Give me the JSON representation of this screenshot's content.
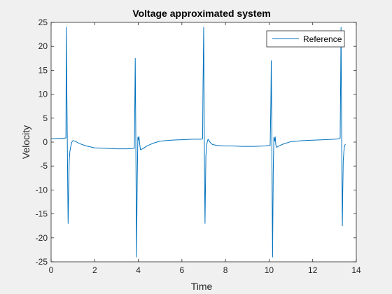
{
  "chart_data": {
    "type": "line",
    "title": "Voltage approximated system",
    "xlabel": "Time",
    "ylabel": "Velocity",
    "xlim": [
      0,
      14
    ],
    "ylim": [
      -25,
      25
    ],
    "xticks": [
      0,
      2,
      4,
      6,
      8,
      10,
      12,
      14
    ],
    "yticks": [
      -25,
      -20,
      -15,
      -10,
      -5,
      0,
      5,
      10,
      15,
      20,
      25
    ],
    "grid": false,
    "legend_position": "top-right",
    "series": [
      {
        "name": "Reference",
        "color": "#0072BD",
        "x": [
          0,
          0.6,
          0.68,
          0.7,
          0.72,
          0.74,
          0.76,
          0.78,
          0.8,
          0.83,
          0.86,
          0.9,
          0.95,
          1.0,
          1.1,
          1.3,
          1.6,
          2.0,
          2.5,
          3.0,
          3.5,
          3.82,
          3.84,
          3.86,
          3.88,
          3.9,
          3.92,
          3.95,
          3.98,
          4.0,
          4.03,
          4.06,
          4.1,
          4.2,
          4.4,
          4.7,
          5.0,
          5.5,
          6.0,
          6.5,
          6.9,
          6.95,
          6.97,
          7.0,
          7.02,
          7.04,
          7.06,
          7.08,
          7.1,
          7.13,
          7.16,
          7.2,
          7.25,
          7.3,
          7.4,
          7.6,
          7.9,
          8.3,
          8.8,
          9.3,
          9.8,
          10.05,
          10.08,
          10.1,
          10.12,
          10.14,
          10.16,
          10.19,
          10.22,
          10.25,
          10.28,
          10.31,
          10.35,
          10.45,
          10.65,
          11.0,
          11.5,
          12.0,
          12.5,
          13.0,
          13.2,
          13.26,
          13.28,
          13.3,
          13.32,
          13.34,
          13.36,
          13.38,
          13.4,
          13.43,
          13.46,
          13.5
        ],
        "y": [
          0.7,
          0.8,
          0.9,
          24,
          12,
          2,
          -8,
          -17,
          -12,
          -4,
          -2,
          -1,
          0,
          0.3,
          0.2,
          -0.3,
          -0.8,
          -1.2,
          -1.3,
          -1.4,
          -1.4,
          -1.3,
          8,
          17.5,
          5,
          -10,
          -24,
          -8,
          1,
          0.4,
          1.2,
          -0.3,
          -1.6,
          -1.4,
          -0.8,
          -0.2,
          0.2,
          0.4,
          0.5,
          0.6,
          0.6,
          0.7,
          12,
          24,
          6,
          -8,
          -17,
          -10,
          -3,
          -1,
          0,
          0.6,
          0.3,
          -0.1,
          -0.5,
          -0.7,
          -0.8,
          -0.8,
          -0.9,
          -0.9,
          -0.8,
          -0.7,
          8,
          17,
          5,
          -12,
          -24,
          -6,
          1,
          0.2,
          1.1,
          -0.6,
          -1.1,
          -0.8,
          -0.4,
          0.1,
          0.3,
          0.4,
          0.5,
          0.6,
          0.7,
          0.8,
          12,
          24,
          8,
          -6,
          -17.5,
          -10,
          -4,
          -2,
          -0.8,
          -0.4
        ]
      }
    ]
  }
}
